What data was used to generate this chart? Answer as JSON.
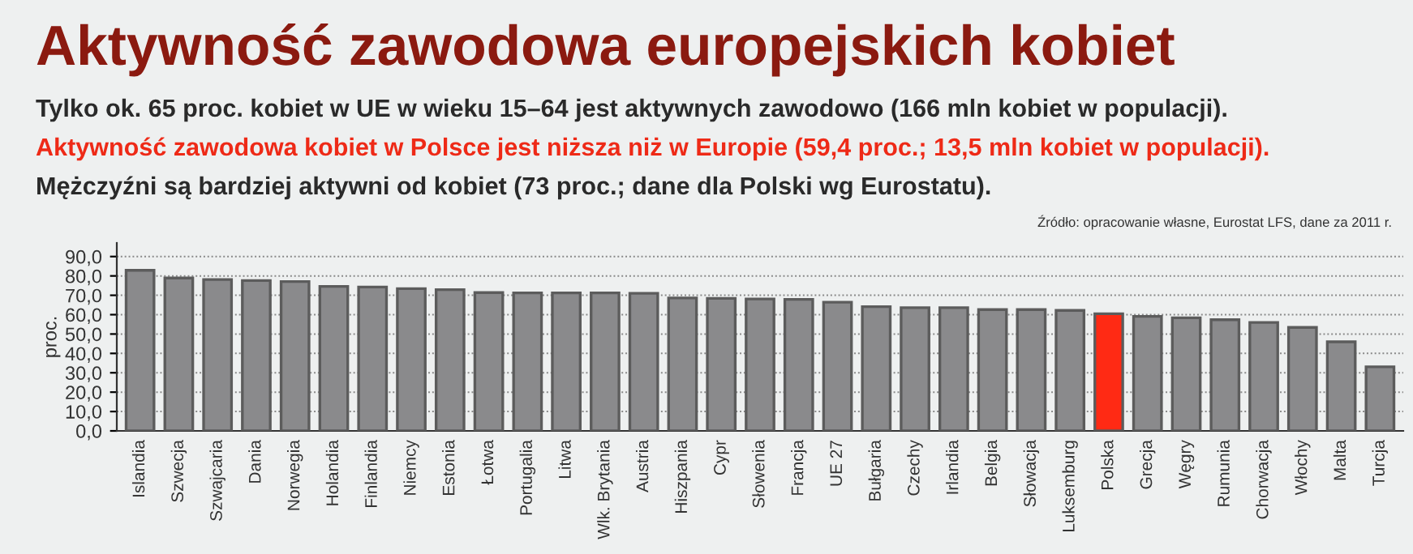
{
  "chart_data": {
    "type": "bar",
    "title": "Aktywność zawodowa europejskich kobiet",
    "subtitle": "Tylko ok. 65 proc. kobiet w UE w wieku 15–64 jest aktywnych zawodowo (166 mln kobiet w populacji).",
    "annotations": [
      "Aktywność zawodowa kobiet w Polsce jest niższa niż w Europie (59,4 proc.; 13,5 mln kobiet w populacji).",
      "Mężczyźni są bardziej aktywni od kobiet (73 proc.; dane dla Polski wg Eurostatu).",
      "Źródło: opracowanie własne, Eurostat LFS, dane za 2011 r."
    ],
    "ylabel": "proc.",
    "categories": [
      "Islandia",
      "Szwecja",
      "Szwajcaria",
      "Dania",
      "Norwegia",
      "Holandia",
      "Finlandia",
      "Niemcy",
      "Estonia",
      "Łotwa",
      "Portugalia",
      "Litwa",
      "Wlk. Brytania",
      "Austria",
      "Hiszpania",
      "Cypr",
      "Słowenia",
      "Francja",
      "UE 27",
      "Bułgaria",
      "Czechy",
      "Irlandia",
      "Belgia",
      "Słowacja",
      "Luksemburg",
      "Polska",
      "Grecja",
      "Węgry",
      "Rumunia",
      "Chorwacja",
      "Włochy",
      "Malta",
      "Turcja"
    ],
    "values": [
      82.9,
      78.9,
      78.1,
      77.6,
      77.1,
      74.6,
      74.3,
      73.4,
      72.9,
      71.4,
      71.2,
      71.2,
      71.2,
      71.0,
      68.6,
      68.4,
      68.1,
      67.9,
      66.4,
      64.1,
      63.6,
      63.6,
      62.6,
      62.6,
      62.2,
      60.5,
      59.1,
      58.4,
      57.4,
      56.0,
      53.4,
      46.0,
      33.1
    ],
    "colors": [
      "#8a8a8c",
      "#8a8a8c",
      "#8a8a8c",
      "#8a8a8c",
      "#8a8a8c",
      "#8a8a8c",
      "#8a8a8c",
      "#8a8a8c",
      "#8a8a8c",
      "#8a8a8c",
      "#8a8a8c",
      "#8a8a8c",
      "#8a8a8c",
      "#8a8a8c",
      "#8a8a8c",
      "#8a8a8c",
      "#8a8a8c",
      "#8a8a8c",
      "#8a8a8c",
      "#8a8a8c",
      "#8a8a8c",
      "#8a8a8c",
      "#8a8a8c",
      "#8a8a8c",
      "#8a8a8c",
      "#ff2a14",
      "#8a8a8c",
      "#8a8a8c",
      "#8a8a8c",
      "#8a8a8c",
      "#8a8a8c",
      "#8a8a8c",
      "#8a8a8c"
    ],
    "ylim": [
      0,
      97
    ],
    "yticks": [
      {
        "value": 0,
        "label": "0,0"
      },
      {
        "value": 10,
        "label": "10,0"
      },
      {
        "value": 20,
        "label": "20,0"
      },
      {
        "value": 30,
        "label": "30,0"
      },
      {
        "value": 40,
        "label": "40,0"
      },
      {
        "value": 50,
        "label": "50,0"
      },
      {
        "value": 60,
        "label": "60,0"
      },
      {
        "value": 70,
        "label": "70,0"
      },
      {
        "value": 80,
        "label": "80,0"
      },
      {
        "value": 90,
        "label": "90,0"
      }
    ],
    "grid": "y"
  }
}
